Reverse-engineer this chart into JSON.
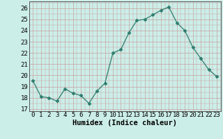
{
  "x": [
    0,
    1,
    2,
    3,
    4,
    5,
    6,
    7,
    8,
    9,
    10,
    11,
    12,
    13,
    14,
    15,
    16,
    17,
    18,
    19,
    20,
    21,
    22,
    23
  ],
  "y": [
    19.5,
    18.1,
    18.0,
    17.7,
    18.8,
    18.4,
    18.2,
    17.5,
    18.6,
    19.3,
    22.0,
    22.3,
    23.8,
    24.9,
    25.0,
    25.4,
    25.8,
    26.1,
    24.7,
    24.0,
    22.5,
    21.5,
    20.5,
    19.9
  ],
  "line_color": "#2e7d6e",
  "marker": "D",
  "marker_size": 2.5,
  "bg_color": "#cceee8",
  "grid_major_color": "#c8a0a0",
  "ylabel_ticks": [
    17,
    18,
    19,
    20,
    21,
    22,
    23,
    24,
    25,
    26
  ],
  "xlabel": "Humidex (Indice chaleur)",
  "xlabel_fontsize": 7.5,
  "tick_fontsize": 6.5,
  "ylim": [
    16.8,
    26.6
  ],
  "xlim": [
    -0.5,
    23.5
  ]
}
